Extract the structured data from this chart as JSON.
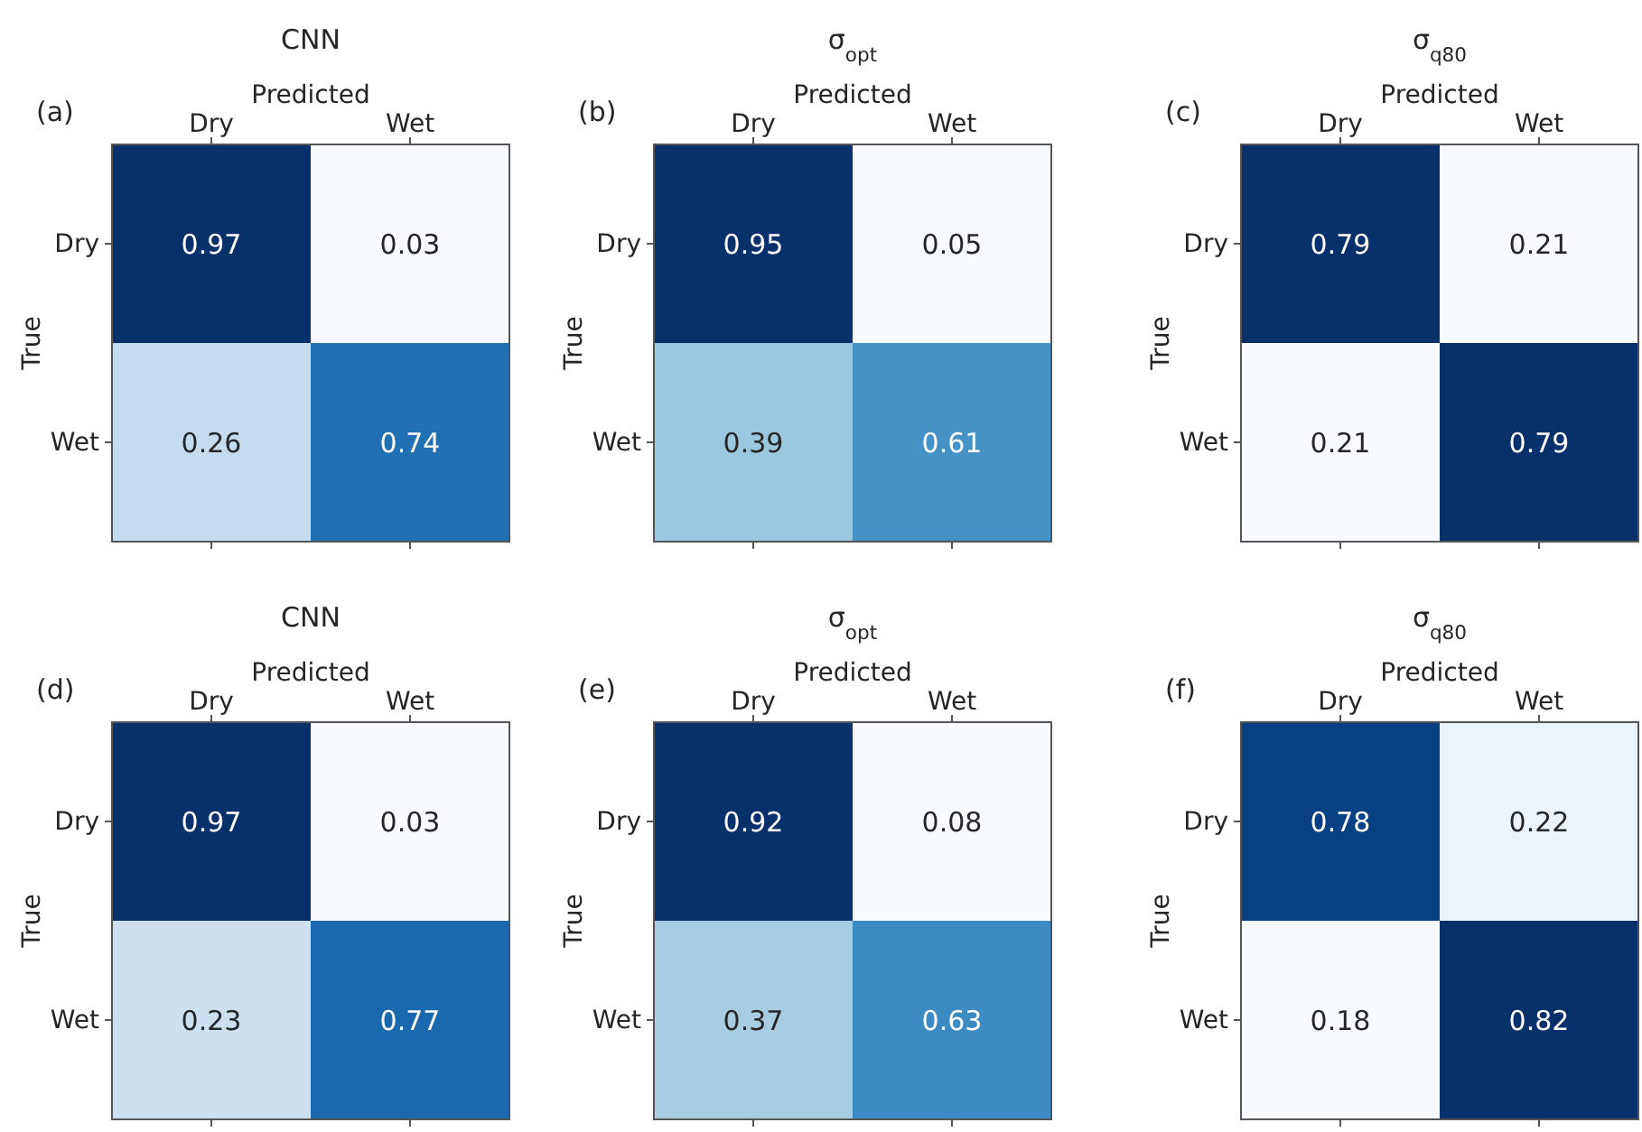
{
  "chart_data": [
    {
      "type": "heatmap",
      "title": "CNN",
      "xlabel": "Predicted",
      "ylabel": "True",
      "annotations": [
        "(a)"
      ],
      "categories": [
        "Dry",
        "Wet"
      ],
      "y_categories": [
        "Dry",
        "Wet"
      ],
      "cells": [
        [
          0.97,
          0.03
        ],
        [
          0.26,
          0.74
        ]
      ],
      "data_labels": true
    },
    {
      "type": "heatmap",
      "title": "σ$_{opt}$",
      "xlabel": "Predicted",
      "ylabel": "True",
      "annotations": [
        "(b)"
      ],
      "categories": [
        "Dry",
        "Wet"
      ],
      "y_categories": [
        "Dry",
        "Wet"
      ],
      "cells": [
        [
          0.95,
          0.05
        ],
        [
          0.39,
          0.61
        ]
      ],
      "data_labels": true
    },
    {
      "type": "heatmap",
      "title": "σ$_{q80}$",
      "xlabel": "Predicted",
      "ylabel": "True",
      "annotations": [
        "(c)"
      ],
      "categories": [
        "Dry",
        "Wet"
      ],
      "y_categories": [
        "Dry",
        "Wet"
      ],
      "cells": [
        [
          0.79,
          0.21
        ],
        [
          0.21,
          0.79
        ]
      ],
      "data_labels": true
    },
    {
      "type": "heatmap",
      "title": "CNN",
      "xlabel": "Predicted",
      "ylabel": "True",
      "annotations": [
        "(d)"
      ],
      "categories": [
        "Dry",
        "Wet"
      ],
      "y_categories": [
        "Dry",
        "Wet"
      ],
      "cells": [
        [
          0.97,
          0.03
        ],
        [
          0.23,
          0.77
        ]
      ],
      "data_labels": true
    },
    {
      "type": "heatmap",
      "title": "σ$_{opt}$",
      "xlabel": "Predicted",
      "ylabel": "True",
      "annotations": [
        "(e)"
      ],
      "categories": [
        "Dry",
        "Wet"
      ],
      "y_categories": [
        "Dry",
        "Wet"
      ],
      "cells": [
        [
          0.92,
          0.08
        ],
        [
          0.37,
          0.63
        ]
      ],
      "data_labels": true
    },
    {
      "type": "heatmap",
      "title": "σ$_{q80}$",
      "xlabel": "Predicted",
      "ylabel": "True",
      "annotations": [
        "(f)"
      ],
      "categories": [
        "Dry",
        "Wet"
      ],
      "y_categories": [
        "Dry",
        "Wet"
      ],
      "cells": [
        [
          0.78,
          0.22
        ],
        [
          0.18,
          0.82
        ]
      ],
      "data_labels": true
    }
  ]
}
